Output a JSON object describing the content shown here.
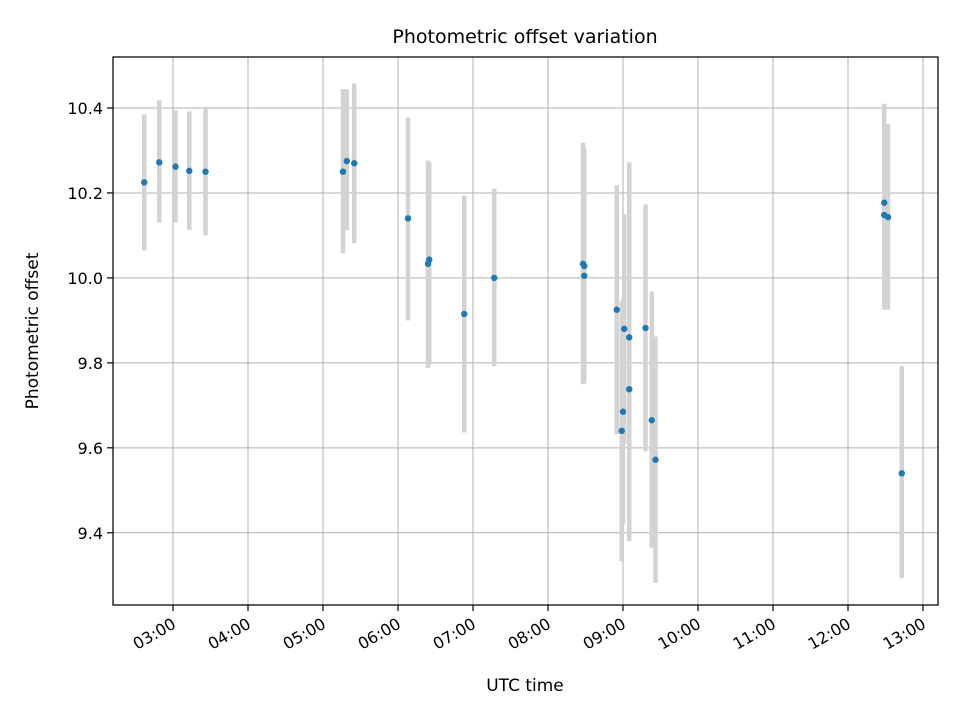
{
  "chart_data": {
    "type": "scatter",
    "title": "Photometric offset variation",
    "xlabel": "UTC time",
    "ylabel": "Photometric offset",
    "x_type": "time",
    "xlim": [
      "02:12",
      "13:12"
    ],
    "ylim": [
      9.23,
      10.52
    ],
    "x_ticks": [
      "03:00",
      "04:00",
      "05:00",
      "06:00",
      "07:00",
      "08:00",
      "09:00",
      "10:00",
      "11:00",
      "12:00",
      "13:00"
    ],
    "y_ticks": [
      9.4,
      9.6,
      9.8,
      10.0,
      10.2,
      10.4
    ],
    "grid": true,
    "colors": {
      "points": "#1f77b4",
      "errorbars": "#d3d3d3",
      "grid": "#b0b0b0"
    },
    "series": [
      {
        "points": [
          {
            "x": "02:37",
            "y": 10.225,
            "ylow": 10.065,
            "yhigh": 10.385
          },
          {
            "x": "02:49",
            "y": 10.272,
            "ylow": 10.13,
            "yhigh": 10.418
          },
          {
            "x": "03:02",
            "y": 10.262,
            "ylow": 10.13,
            "yhigh": 10.395
          },
          {
            "x": "03:13",
            "y": 10.252,
            "ylow": 10.113,
            "yhigh": 10.392
          },
          {
            "x": "03:26",
            "y": 10.25,
            "ylow": 10.1,
            "yhigh": 10.403
          },
          {
            "x": "05:16",
            "y": 10.25,
            "ylow": 10.058,
            "yhigh": 10.444
          },
          {
            "x": "05:19",
            "y": 10.275,
            "ylow": 10.112,
            "yhigh": 10.444
          },
          {
            "x": "05:25",
            "y": 10.27,
            "ylow": 10.082,
            "yhigh": 10.458
          },
          {
            "x": "06:08",
            "y": 10.14,
            "ylow": 9.9,
            "yhigh": 10.378
          },
          {
            "x": "06:24",
            "y": 10.033,
            "ylow": 9.788,
            "yhigh": 10.276
          },
          {
            "x": "06:25",
            "y": 10.043,
            "ylow": 9.796,
            "yhigh": 10.272
          },
          {
            "x": "06:53",
            "y": 9.915,
            "ylow": 9.636,
            "yhigh": 10.194
          },
          {
            "x": "07:17",
            "y": 10.0,
            "ylow": 9.792,
            "yhigh": 10.21
          },
          {
            "x": "08:28",
            "y": 10.033,
            "ylow": 9.75,
            "yhigh": 10.318
          },
          {
            "x": "08:29",
            "y": 10.028,
            "ylow": 9.752,
            "yhigh": 10.305
          },
          {
            "x": "08:29",
            "y": 10.005,
            "ylow": 9.76,
            "yhigh": 10.25
          },
          {
            "x": "08:55",
            "y": 9.925,
            "ylow": 9.632,
            "yhigh": 10.218
          },
          {
            "x": "08:59",
            "y": 9.64,
            "ylow": 9.333,
            "yhigh": 9.945
          },
          {
            "x": "09:00",
            "y": 9.685,
            "ylow": 9.42,
            "yhigh": 9.95
          },
          {
            "x": "09:01",
            "y": 9.88,
            "ylow": 9.61,
            "yhigh": 10.15
          },
          {
            "x": "09:05",
            "y": 9.86,
            "ylow": 9.44,
            "yhigh": 10.1
          },
          {
            "x": "09:05",
            "y": 9.738,
            "ylow": 9.38,
            "yhigh": 10.272
          },
          {
            "x": "09:18",
            "y": 9.882,
            "ylow": 9.592,
            "yhigh": 10.173
          },
          {
            "x": "09:23",
            "y": 9.665,
            "ylow": 9.365,
            "yhigh": 9.968
          },
          {
            "x": "09:26",
            "y": 9.572,
            "ylow": 9.282,
            "yhigh": 9.862
          },
          {
            "x": "12:29",
            "y": 10.177,
            "ylow": 9.925,
            "yhigh": 10.41
          },
          {
            "x": "12:29",
            "y": 10.148,
            "ylow": 9.932,
            "yhigh": 10.365
          },
          {
            "x": "12:32",
            "y": 10.143,
            "ylow": 9.925,
            "yhigh": 10.362
          },
          {
            "x": "12:43",
            "y": 9.54,
            "ylow": 9.293,
            "yhigh": 9.793
          }
        ]
      }
    ]
  }
}
